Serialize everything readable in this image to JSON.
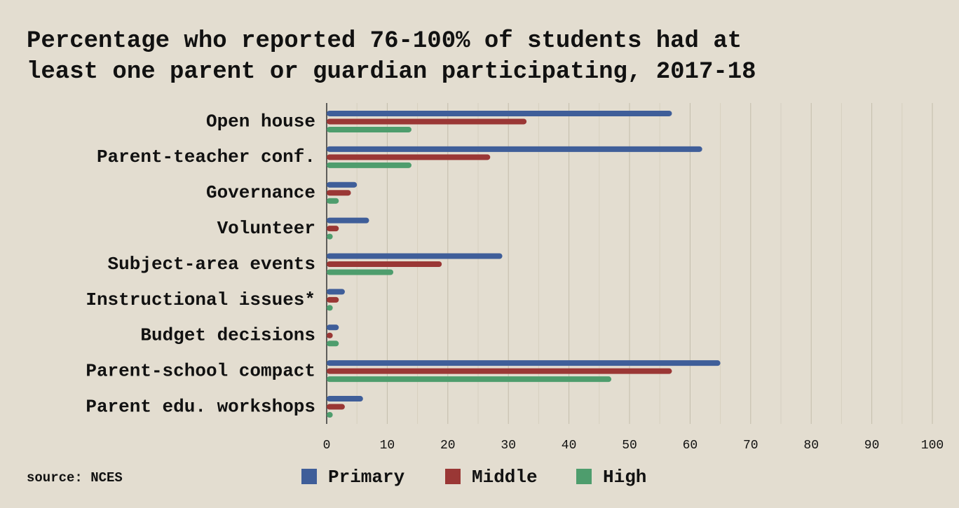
{
  "chart_data": {
    "type": "hbar",
    "title": [
      "Percentage who reported 76-100% of students had at",
      "least one parent or guardian participating, 2017-18"
    ],
    "source": "source: NCES",
    "categories": [
      "Open house",
      "Parent-teacher conf.",
      "Governance",
      "Volunteer",
      "Subject-area events",
      "Instructional issues*",
      "Budget decisions",
      "Parent-school compact",
      "Parent edu. workshops"
    ],
    "series": [
      {
        "name": "Primary",
        "color": "#3f5e99",
        "values": [
          57,
          62,
          5,
          7,
          29,
          3,
          2,
          65,
          6
        ]
      },
      {
        "name": "Middle",
        "color": "#9a3735",
        "values": [
          33,
          27,
          4,
          2,
          19,
          2,
          1,
          57,
          3
        ]
      },
      {
        "name": "High",
        "color": "#4e9d6d",
        "values": [
          14,
          14,
          2,
          1,
          11,
          1,
          2,
          47,
          1
        ]
      }
    ],
    "xlim": [
      0,
      100
    ],
    "xticks": [
      0,
      10,
      20,
      30,
      40,
      50,
      60,
      70,
      80,
      90,
      100
    ],
    "xminorticks": [
      5,
      15,
      25,
      35,
      45,
      55,
      65,
      75,
      85,
      95
    ],
    "grid": true
  }
}
